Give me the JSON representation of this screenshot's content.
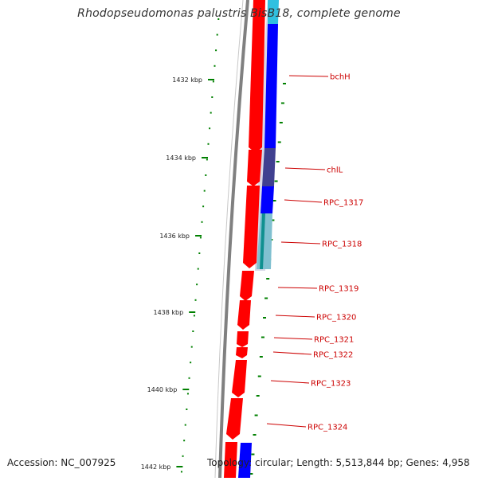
{
  "title": "Rhodopseudomonas palustris BisB18, complete genome",
  "footer": {
    "accession": "Accession: NC_007925",
    "summary": "Topology: circular; Length: 5,513,844 bp; Genes: 4,958"
  },
  "ticks": [
    {
      "label": "1432 kbp",
      "kbp": 1432
    },
    {
      "label": "1434 kbp",
      "kbp": 1434
    },
    {
      "label": "1436 kbp",
      "kbp": 1436
    },
    {
      "label": "1438 kbp",
      "kbp": 1438
    },
    {
      "label": "1440 kbp",
      "kbp": 1440
    },
    {
      "label": "1442 kbp",
      "kbp": 1442
    }
  ],
  "genes": [
    {
      "label": "bchH"
    },
    {
      "label": "chlL"
    },
    {
      "label": "RPC_1317"
    },
    {
      "label": "RPC_1318"
    },
    {
      "label": "RPC_1319"
    },
    {
      "label": "RPC_1320"
    },
    {
      "label": "RPC_1321"
    },
    {
      "label": "RPC_1322"
    },
    {
      "label": "RPC_1323"
    },
    {
      "label": "RPC_1324"
    }
  ],
  "colors": {
    "forward_cds": "#ff0000",
    "reverse_cds": "#0000ff",
    "backbone": "#808080",
    "gc_skew": "#008000",
    "label": "#cc0000",
    "chlL_block": "#404090",
    "rpc1318_block": "#20a0a0"
  }
}
